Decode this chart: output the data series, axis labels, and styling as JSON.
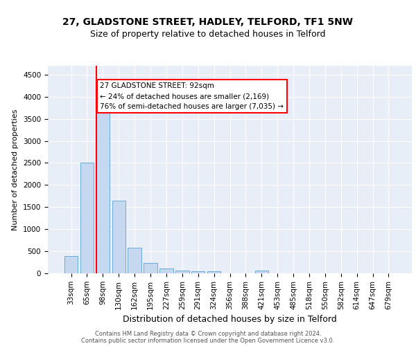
{
  "title1": "27, GLADSTONE STREET, HADLEY, TELFORD, TF1 5NW",
  "title2": "Size of property relative to detached houses in Telford",
  "xlabel": "Distribution of detached houses by size in Telford",
  "ylabel": "Number of detached properties",
  "categories": [
    "33sqm",
    "65sqm",
    "98sqm",
    "130sqm",
    "162sqm",
    "195sqm",
    "227sqm",
    "259sqm",
    "291sqm",
    "324sqm",
    "356sqm",
    "388sqm",
    "421sqm",
    "453sqm",
    "485sqm",
    "518sqm",
    "550sqm",
    "582sqm",
    "614sqm",
    "647sqm",
    "679sqm"
  ],
  "values": [
    390,
    2500,
    3750,
    1650,
    580,
    240,
    105,
    60,
    45,
    40,
    0,
    0,
    55,
    0,
    0,
    0,
    0,
    0,
    0,
    0,
    0
  ],
  "bar_color": "#c5d8f0",
  "bar_edge_color": "#6aaad4",
  "property_line_color": "red",
  "annotation_text": "27 GLADSTONE STREET: 92sqm\n← 24% of detached houses are smaller (2,169)\n76% of semi-detached houses are larger (7,035) →",
  "annotation_box_color": "white",
  "annotation_box_edge_color": "red",
  "ylim": [
    0,
    4700
  ],
  "yticks": [
    0,
    500,
    1000,
    1500,
    2000,
    2500,
    3000,
    3500,
    4000,
    4500
  ],
  "background_color": "#e8eef8",
  "grid_color": "white",
  "footer_text": "Contains HM Land Registry data © Crown copyright and database right 2024.\nContains public sector information licensed under the Open Government Licence v3.0.",
  "title1_fontsize": 10,
  "title2_fontsize": 9,
  "xlabel_fontsize": 9,
  "ylabel_fontsize": 8,
  "tick_fontsize": 7.5,
  "annotation_fontsize": 7.5,
  "footer_fontsize": 6
}
